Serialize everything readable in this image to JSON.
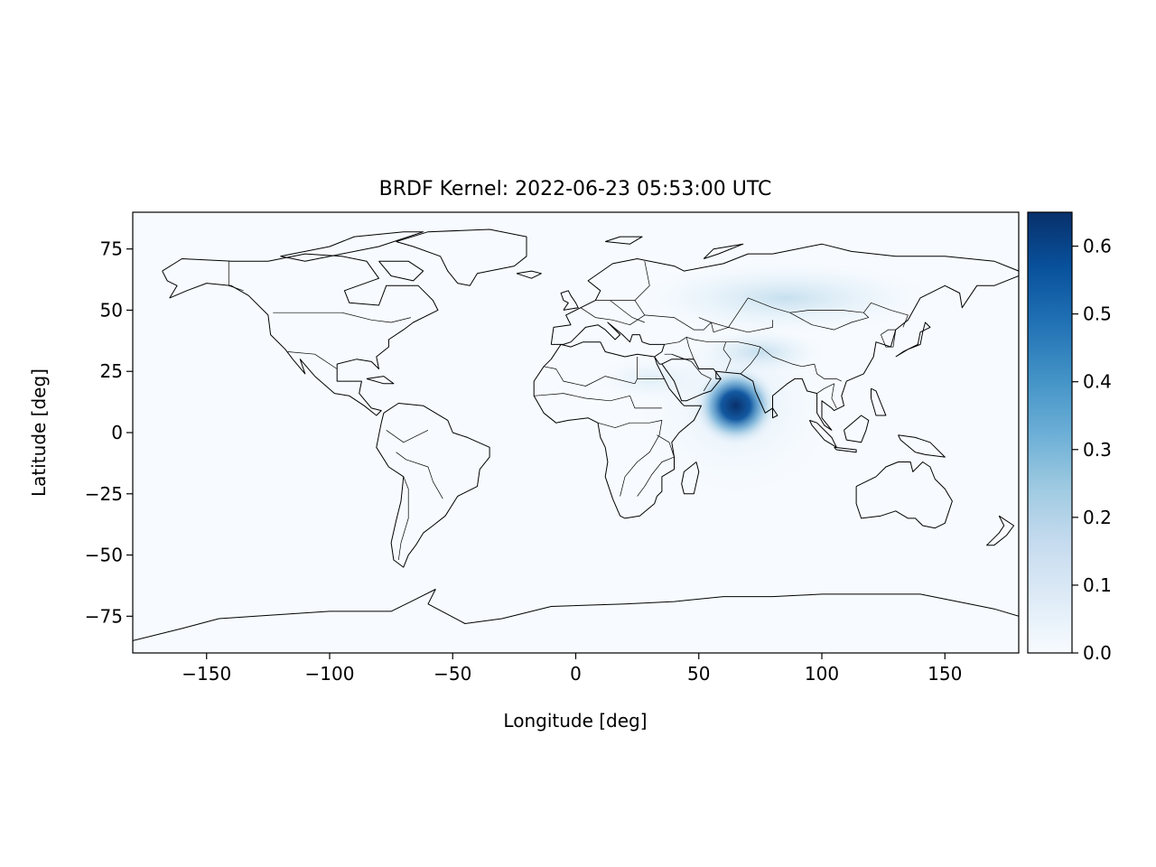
{
  "chart_data": {
    "type": "heatmap",
    "title": "BRDF Kernel: 2022-06-23 05:53:00 UTC",
    "xlabel": "Longitude [deg]",
    "ylabel": "Latitude [deg]",
    "xlim": [
      -180,
      180
    ],
    "ylim": [
      -90,
      90
    ],
    "x_ticks": [
      -150,
      -100,
      -50,
      0,
      50,
      100,
      150
    ],
    "x_tick_labels": [
      "−150",
      "−100",
      "−50",
      "0",
      "50",
      "100",
      "150"
    ],
    "y_ticks": [
      -75,
      -50,
      -25,
      0,
      25,
      50,
      75
    ],
    "y_tick_labels": [
      "−75",
      "−50",
      "−25",
      "0",
      "25",
      "50",
      "75"
    ],
    "colormap": "Blues",
    "color_range": [
      0.0,
      0.65
    ],
    "colorbar_ticks": [
      0.0,
      0.1,
      0.2,
      0.3,
      0.4,
      0.5,
      0.6
    ],
    "colorbar_tick_labels": [
      "0.0",
      "0.1",
      "0.2",
      "0.3",
      "0.4",
      "0.5",
      "0.6"
    ],
    "peak": {
      "lon": 65,
      "lat": 11,
      "value": 0.65
    },
    "grid": false,
    "overlay": "coastlines and country borders"
  }
}
